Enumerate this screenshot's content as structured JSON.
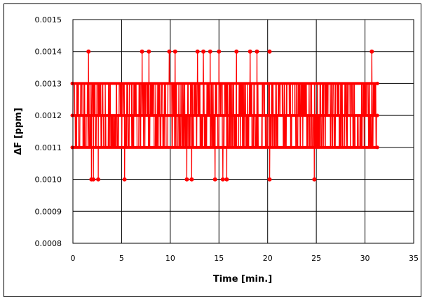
{
  "chart_data": {
    "type": "line",
    "title": "",
    "xlabel": "Time [min.]",
    "ylabel": "ΔF [ppm]",
    "xlim": [
      0,
      35
    ],
    "ylim": [
      0.0008,
      0.0015
    ],
    "xticks": [
      0,
      5,
      10,
      15,
      20,
      25,
      30,
      35
    ],
    "yticks": [
      0.0008,
      0.0009,
      0.001,
      0.0011,
      0.0012,
      0.0013,
      0.0014,
      0.0015
    ],
    "xtick_labels": [
      "0",
      "5",
      "10",
      "15",
      "20",
      "25",
      "30",
      "35"
    ],
    "ytick_labels": [
      "0.0008",
      "0.0009",
      "0.0010",
      "0.0011",
      "0.0012",
      "0.0013",
      "0.0014",
      "0.0015"
    ],
    "grid": true,
    "legend": null,
    "series": [
      {
        "name": "ΔF",
        "color": "#ff0000",
        "marker": "circle",
        "description": "Dense quantized signal oscillating between 0.0011, 0.0012 and 0.0013 ppm from t=0 to ~31.2 min, with occasional excursions to 0.0014 and 0.0010",
        "time_range": [
          0,
          31.2
        ],
        "base_levels": [
          0.0011,
          0.0012,
          0.0013
        ],
        "high_spikes": {
          "value": 0.0014,
          "times": [
            1.6,
            7.1,
            7.8,
            9.9,
            10.5,
            12.8,
            13.4,
            14.1,
            15.0,
            16.8,
            18.2,
            18.9,
            20.2,
            30.7
          ]
        },
        "low_spikes": {
          "value": 0.001,
          "times": [
            1.9,
            2.1,
            2.6,
            5.3,
            11.7,
            12.2,
            14.6,
            15.4,
            15.8,
            20.2,
            24.8
          ]
        }
      }
    ]
  }
}
